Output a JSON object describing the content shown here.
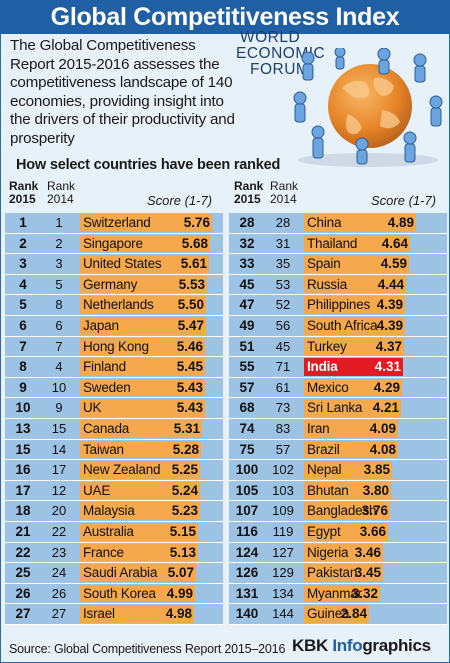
{
  "title": "Global Competitiveness Index",
  "intro": "The Global Competitiveness Report 2015-2016 assesses the competitiveness landscape of 140 economies, providing insight into the drivers of their productivity and prosperity",
  "logo_lines": [
    "WORLD",
    "ECONOMIC",
    "FORUM"
  ],
  "subheading": "How select countries have been ranked",
  "headers": {
    "rank_label": "Rank",
    "year_2015": "2015",
    "year_2014": "2014",
    "score_label": "Score (1-7)"
  },
  "highlight": "India",
  "colors": {
    "title_bar": "#1f5fa3",
    "row_band": "#9cc2e4",
    "score_bar": "#f5a94c",
    "highlight_bar": "#e21b23",
    "background": "#e7f1fa"
  },
  "chart_data": {
    "type": "bar",
    "title": "Global Competitiveness Index",
    "score_range": [
      1,
      7
    ],
    "columns": [
      {
        "rows": [
          {
            "rank2015": "1",
            "rank2014": "1",
            "country": "Switzerland",
            "score": 5.76
          },
          {
            "rank2015": "2",
            "rank2014": "2",
            "country": "Singapore",
            "score": 5.68
          },
          {
            "rank2015": "3",
            "rank2014": "3",
            "country": "United States",
            "score": 5.61
          },
          {
            "rank2015": "4",
            "rank2014": "5",
            "country": "Germany",
            "score": 5.53
          },
          {
            "rank2015": "5",
            "rank2014": "8",
            "country": "Netherlands",
            "score": 5.5
          },
          {
            "rank2015": "6",
            "rank2014": "6",
            "country": "Japan",
            "score": 5.47
          },
          {
            "rank2015": "7",
            "rank2014": "7",
            "country": "Hong Kong",
            "score": 5.46
          },
          {
            "rank2015": "8",
            "rank2014": "4",
            "country": "Finland",
            "score": 5.45
          },
          {
            "rank2015": "9",
            "rank2014": "10",
            "country": "Sweden",
            "score": 5.43
          },
          {
            "rank2015": "10",
            "rank2014": "9",
            "country": "UK",
            "score": 5.43
          },
          {
            "rank2015": "13",
            "rank2014": "15",
            "country": "Canada",
            "score": 5.31
          },
          {
            "rank2015": "15",
            "rank2014": "14",
            "country": "Taiwan",
            "score": 5.28
          },
          {
            "rank2015": "16",
            "rank2014": "17",
            "country": "New Zealand",
            "score": 5.25
          },
          {
            "rank2015": "17",
            "rank2014": "12",
            "country": "UAE",
            "score": 5.24
          },
          {
            "rank2015": "18",
            "rank2014": "20",
            "country": "Malaysia",
            "score": 5.23
          },
          {
            "rank2015": "21",
            "rank2014": "22",
            "country": "Australia",
            "score": 5.15
          },
          {
            "rank2015": "22",
            "rank2014": "23",
            "country": "France",
            "score": 5.13
          },
          {
            "rank2015": "25",
            "rank2014": "24",
            "country": "Saudi Arabia",
            "score": 5.07
          },
          {
            "rank2015": "26",
            "rank2014": "26",
            "country": "South Korea",
            "score": 4.99
          },
          {
            "rank2015": "27",
            "rank2014": "27",
            "country": "Israel",
            "score": 4.98
          }
        ]
      },
      {
        "rows": [
          {
            "rank2015": "28",
            "rank2014": "28",
            "country": "China",
            "score": 4.89
          },
          {
            "rank2015": "32",
            "rank2014": "31",
            "country": "Thailand",
            "score": 4.64
          },
          {
            "rank2015": "33",
            "rank2014": "35",
            "country": "Spain",
            "score": 4.59
          },
          {
            "rank2015": "45",
            "rank2014": "53",
            "country": "Russia",
            "score": 4.44
          },
          {
            "rank2015": "47",
            "rank2014": "52",
            "country": "Philippines",
            "score": 4.39
          },
          {
            "rank2015": "49",
            "rank2014": "56",
            "country": "South Africa",
            "score": 4.39
          },
          {
            "rank2015": "51",
            "rank2014": "45",
            "country": "Turkey",
            "score": 4.37
          },
          {
            "rank2015": "55",
            "rank2014": "71",
            "country": "India",
            "score": 4.31
          },
          {
            "rank2015": "57",
            "rank2014": "61",
            "country": "Mexico",
            "score": 4.29
          },
          {
            "rank2015": "68",
            "rank2014": "73",
            "country": "Sri Lanka",
            "score": 4.21
          },
          {
            "rank2015": "74",
            "rank2014": "83",
            "country": "Iran",
            "score": 4.09
          },
          {
            "rank2015": "75",
            "rank2014": "57",
            "country": "Brazil",
            "score": 4.08
          },
          {
            "rank2015": "100",
            "rank2014": "102",
            "country": "Nepal",
            "score": 3.85
          },
          {
            "rank2015": "105",
            "rank2014": "103",
            "country": "Bhutan",
            "score": 3.8
          },
          {
            "rank2015": "107",
            "rank2014": "109",
            "country": "Bangladesh",
            "score": 3.76
          },
          {
            "rank2015": "116",
            "rank2014": "119",
            "country": "Egypt",
            "score": 3.66
          },
          {
            "rank2015": "124",
            "rank2014": "127",
            "country": "Nigeria",
            "score": 3.46
          },
          {
            "rank2015": "126",
            "rank2014": "129",
            "country": "Pakistan",
            "score": 3.45
          },
          {
            "rank2015": "131",
            "rank2014": "134",
            "country": "Myanmar",
            "score": 3.32
          },
          {
            "rank2015": "140",
            "rank2014": "144",
            "country": "Guinea",
            "score": 2.84
          }
        ]
      }
    ]
  },
  "source": "Source: Global Competitiveness Report 2015–2016",
  "brand": {
    "prefix": "KBK ",
    "highlight": "Info",
    "suffix": "graphics"
  }
}
